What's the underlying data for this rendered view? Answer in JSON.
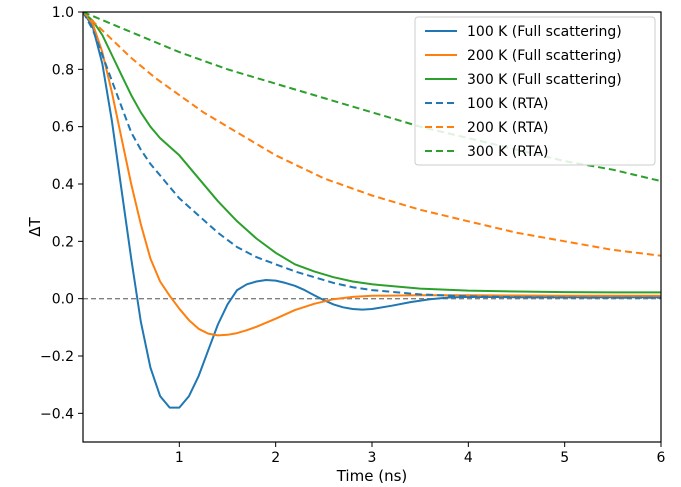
{
  "chart_data": {
    "type": "line",
    "title": "",
    "xlabel": "Time (ns)",
    "ylabel": "ΔT",
    "xlim": [
      0,
      6
    ],
    "ylim": [
      -0.5,
      1.0
    ],
    "xticks": [
      1,
      2,
      3,
      4,
      5,
      6
    ],
    "yticks": [
      -0.4,
      -0.2,
      0.0,
      0.2,
      0.4,
      0.6,
      0.8,
      1.0
    ],
    "xtick_labels": [
      "1",
      "2",
      "3",
      "4",
      "5",
      "6"
    ],
    "ytick_labels": [
      "−0.4",
      "−0.2",
      "0.0",
      "0.2",
      "0.4",
      "0.6",
      "0.8",
      "1.0"
    ],
    "grid": false,
    "legend_position": "top-right",
    "reference_line": {
      "y": 0.0,
      "color": "#808080",
      "style": "dashed"
    },
    "series": [
      {
        "name": "100 K (Full scattering)",
        "color": "#1f77b4",
        "style": "solid",
        "x": [
          0,
          0.1,
          0.2,
          0.3,
          0.4,
          0.5,
          0.6,
          0.7,
          0.8,
          0.9,
          1.0,
          1.1,
          1.2,
          1.3,
          1.4,
          1.5,
          1.6,
          1.7,
          1.8,
          1.9,
          2.0,
          2.1,
          2.2,
          2.3,
          2.4,
          2.5,
          2.6,
          2.7,
          2.8,
          2.9,
          3.0,
          3.2,
          3.4,
          3.6,
          3.8,
          4.0,
          4.5,
          5.0,
          5.5,
          6.0
        ],
        "y": [
          1.0,
          0.95,
          0.82,
          0.62,
          0.38,
          0.14,
          -0.08,
          -0.24,
          -0.34,
          -0.38,
          -0.38,
          -0.34,
          -0.27,
          -0.18,
          -0.09,
          -0.02,
          0.03,
          0.05,
          0.06,
          0.065,
          0.063,
          0.055,
          0.045,
          0.03,
          0.012,
          -0.005,
          -0.02,
          -0.03,
          -0.036,
          -0.038,
          -0.036,
          -0.025,
          -0.012,
          -0.002,
          0.004,
          0.006,
          0.005,
          0.005,
          0.005,
          0.005
        ]
      },
      {
        "name": "200 K (Full scattering)",
        "color": "#ff7f0e",
        "style": "solid",
        "x": [
          0,
          0.1,
          0.2,
          0.3,
          0.4,
          0.5,
          0.6,
          0.7,
          0.8,
          0.9,
          1.0,
          1.1,
          1.2,
          1.3,
          1.4,
          1.5,
          1.6,
          1.7,
          1.8,
          2.0,
          2.2,
          2.4,
          2.6,
          2.8,
          3.0,
          3.5,
          4.0,
          4.5,
          5.0,
          5.5,
          6.0
        ],
        "y": [
          1.0,
          0.96,
          0.86,
          0.72,
          0.56,
          0.4,
          0.26,
          0.14,
          0.06,
          0.01,
          -0.035,
          -0.075,
          -0.105,
          -0.122,
          -0.128,
          -0.126,
          -0.12,
          -0.11,
          -0.098,
          -0.07,
          -0.04,
          -0.018,
          -0.002,
          0.006,
          0.01,
          0.012,
          0.012,
          0.011,
          0.01,
          0.01,
          0.01
        ]
      },
      {
        "name": "300 K (Full scattering)",
        "color": "#2ca02c",
        "style": "solid",
        "x": [
          0,
          0.1,
          0.2,
          0.3,
          0.4,
          0.5,
          0.6,
          0.7,
          0.8,
          0.9,
          1.0,
          1.2,
          1.4,
          1.6,
          1.8,
          2.0,
          2.2,
          2.4,
          2.6,
          2.8,
          3.0,
          3.5,
          4.0,
          4.5,
          5.0,
          5.5,
          6.0
        ],
        "y": [
          1.0,
          0.97,
          0.92,
          0.85,
          0.78,
          0.71,
          0.65,
          0.6,
          0.56,
          0.53,
          0.5,
          0.42,
          0.34,
          0.27,
          0.21,
          0.16,
          0.12,
          0.095,
          0.075,
          0.06,
          0.05,
          0.035,
          0.028,
          0.025,
          0.023,
          0.022,
          0.022
        ]
      },
      {
        "name": "100 K (RTA)",
        "color": "#1f77b4",
        "style": "dashed",
        "x": [
          0,
          0.1,
          0.2,
          0.3,
          0.4,
          0.5,
          0.6,
          0.7,
          0.8,
          0.9,
          1.0,
          1.2,
          1.4,
          1.6,
          1.8,
          2.0,
          2.2,
          2.4,
          2.6,
          2.8,
          3.0,
          3.5,
          4.0,
          4.5,
          5.0,
          5.5,
          6.0
        ],
        "y": [
          1.0,
          0.94,
          0.85,
          0.76,
          0.67,
          0.58,
          0.52,
          0.47,
          0.43,
          0.39,
          0.35,
          0.29,
          0.23,
          0.18,
          0.145,
          0.12,
          0.095,
          0.075,
          0.055,
          0.04,
          0.03,
          0.015,
          0.008,
          0.005,
          0.004,
          0.003,
          0.003
        ]
      },
      {
        "name": "200 K (RTA)",
        "color": "#ff7f0e",
        "style": "dashed",
        "x": [
          0,
          0.25,
          0.5,
          0.75,
          1.0,
          1.25,
          1.5,
          1.75,
          2.0,
          2.5,
          3.0,
          3.5,
          4.0,
          4.5,
          5.0,
          5.5,
          6.0
        ],
        "y": [
          1.0,
          0.92,
          0.84,
          0.77,
          0.71,
          0.65,
          0.6,
          0.55,
          0.5,
          0.42,
          0.36,
          0.31,
          0.27,
          0.23,
          0.2,
          0.17,
          0.15
        ]
      },
      {
        "name": "300 K (RTA)",
        "color": "#2ca02c",
        "style": "dashed",
        "x": [
          0,
          0.5,
          1.0,
          1.5,
          2.0,
          2.5,
          3.0,
          3.5,
          4.0,
          4.5,
          5.0,
          5.5,
          6.0
        ],
        "y": [
          1.0,
          0.93,
          0.86,
          0.8,
          0.75,
          0.7,
          0.65,
          0.6,
          0.56,
          0.52,
          0.48,
          0.45,
          0.41
        ]
      }
    ]
  }
}
